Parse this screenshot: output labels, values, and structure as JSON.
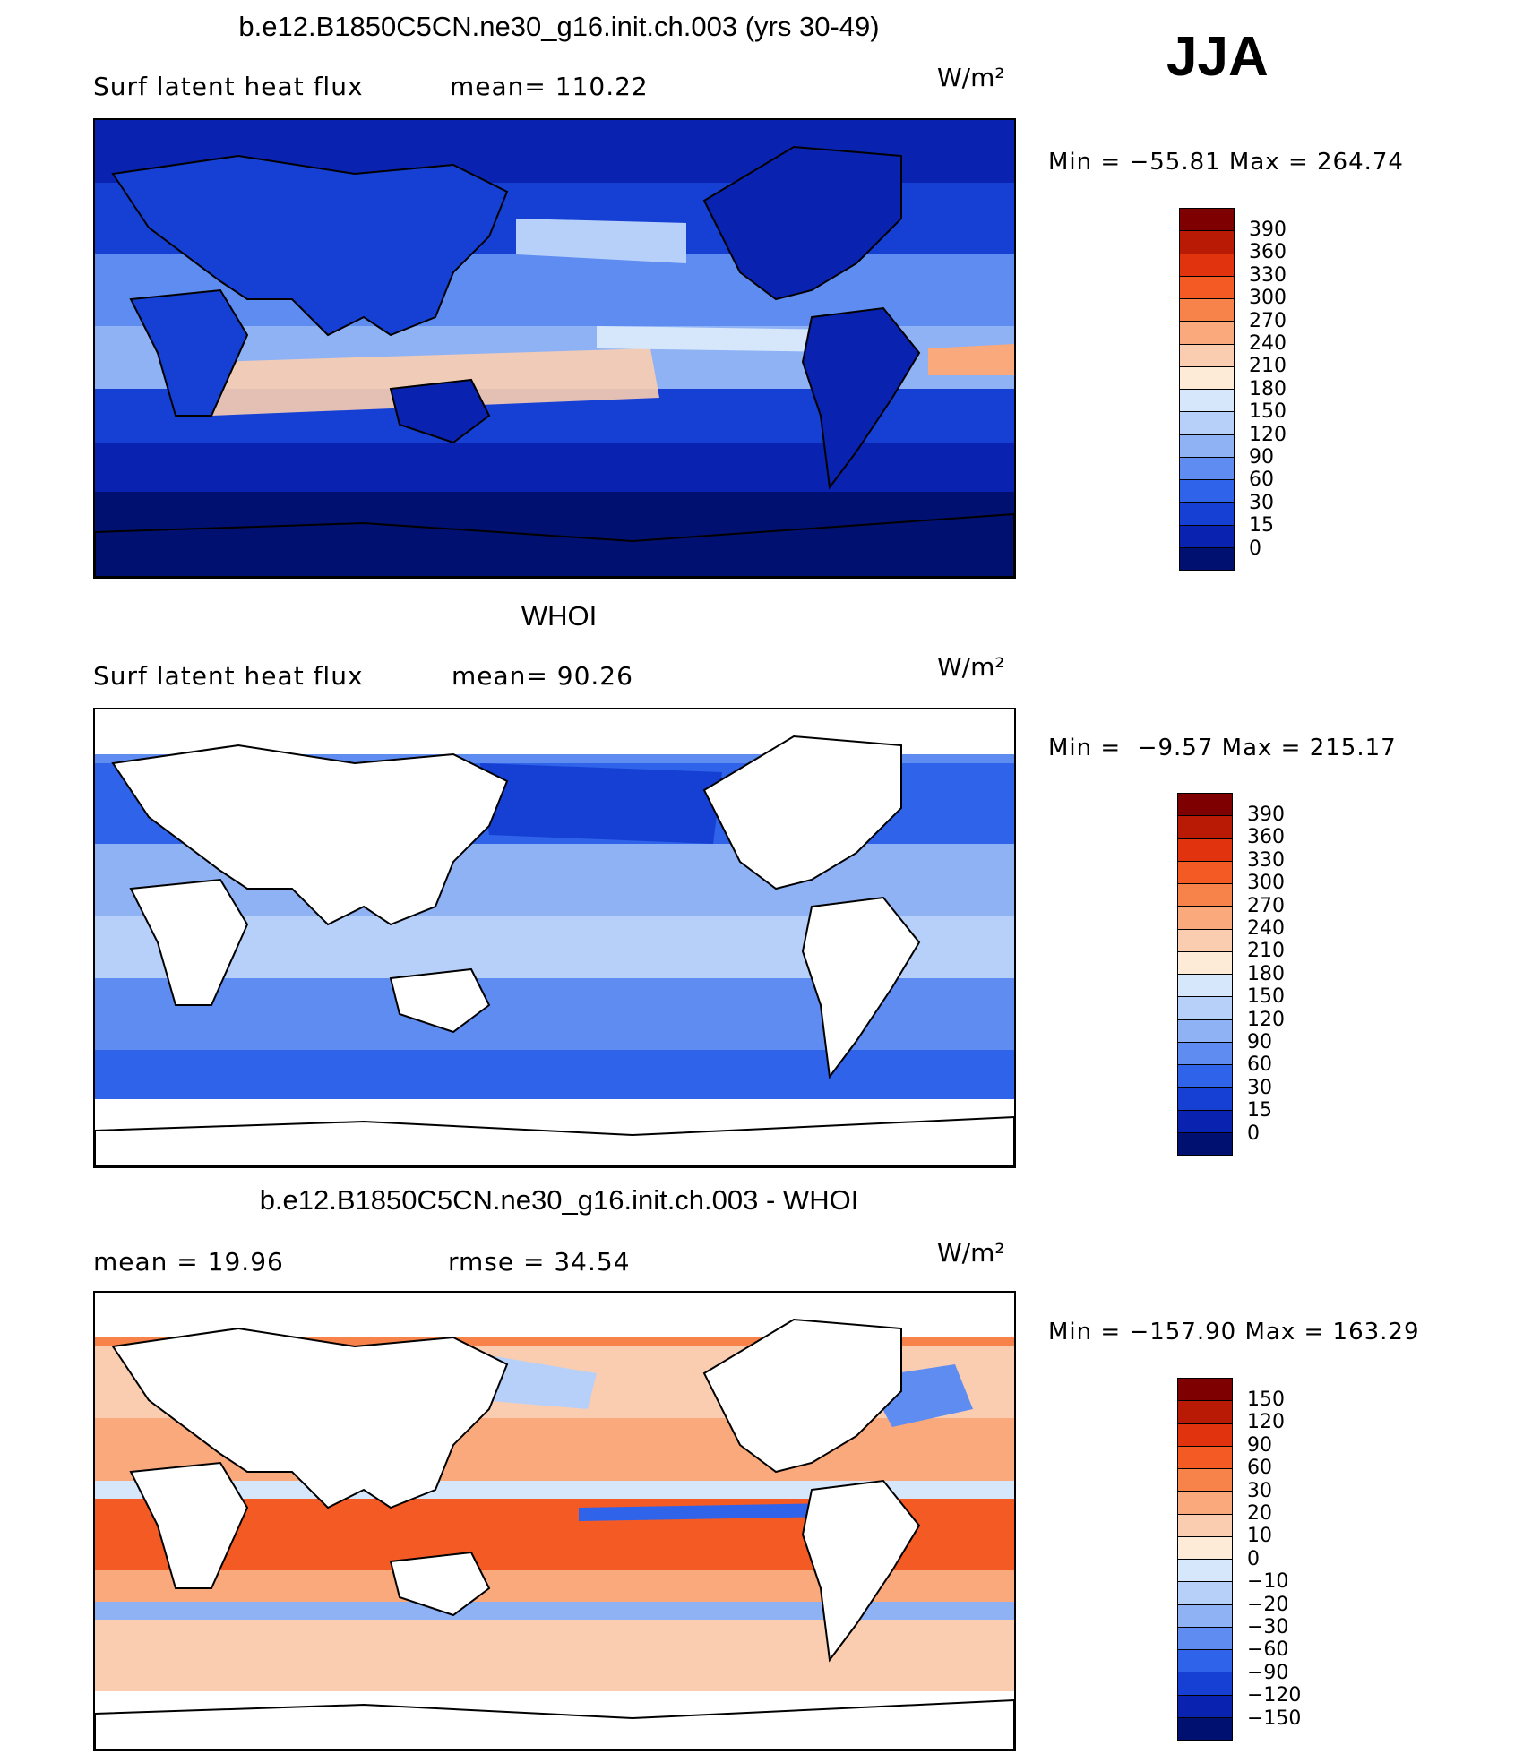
{
  "season": "JJA",
  "panels": [
    {
      "title": "b.e12.B1850C5CN.ne30_g16.init.ch.003 (yrs 30-49)",
      "variable": "Surf latent heat flux",
      "stat": "mean= 110.22",
      "units": "W/m²",
      "minmax": "Min = −55.81 Max = 264.74",
      "colorbar": {
        "labels": [
          "390",
          "360",
          "330",
          "300",
          "270",
          "240",
          "210",
          "180",
          "150",
          "120",
          "90",
          "60",
          "30",
          "15",
          "0"
        ],
        "colors": [
          "#7f0000",
          "#b81a05",
          "#e0330e",
          "#f45a23",
          "#f7834a",
          "#f9a97c",
          "#fbcdb0",
          "#fdebd7",
          "#d6e7fb",
          "#b7d0fa",
          "#8fb2f5",
          "#5f8cf0",
          "#2f63e9",
          "#1640d4",
          "#0a22b0",
          "#001070"
        ]
      }
    },
    {
      "title": "WHOI",
      "variable": "Surf latent heat flux",
      "stat": "mean=  90.26",
      "units": "W/m²",
      "minmax": "Min =  −9.57 Max = 215.17",
      "colorbar": {
        "labels": [
          "390",
          "360",
          "330",
          "300",
          "270",
          "240",
          "210",
          "180",
          "150",
          "120",
          "90",
          "60",
          "30",
          "15",
          "0"
        ],
        "colors": [
          "#7f0000",
          "#b81a05",
          "#e0330e",
          "#f45a23",
          "#f7834a",
          "#f9a97c",
          "#fbcdb0",
          "#fdebd7",
          "#d6e7fb",
          "#b7d0fa",
          "#8fb2f5",
          "#5f8cf0",
          "#2f63e9",
          "#1640d4",
          "#0a22b0",
          "#001070"
        ]
      }
    },
    {
      "title": "b.e12.B1850C5CN.ne30_g16.init.ch.003 - WHOI",
      "stat_mean": "mean =   19.96",
      "stat_rmse": "rmse =   34.54",
      "units": "W/m²",
      "minmax": "Min = −157.90 Max = 163.29",
      "colorbar": {
        "labels": [
          "150",
          "120",
          "90",
          "60",
          "30",
          "20",
          "10",
          "0",
          "−10",
          "−20",
          "−30",
          "−60",
          "−90",
          "−120",
          "−150"
        ],
        "colors": [
          "#7f0000",
          "#b81a05",
          "#e0330e",
          "#f45a23",
          "#f7834a",
          "#f9a97c",
          "#fbcdb0",
          "#fdebd7",
          "#d6e7fb",
          "#b7d0fa",
          "#8fb2f5",
          "#5f8cf0",
          "#2f63e9",
          "#1640d4",
          "#0a22b0",
          "#001070"
        ]
      }
    }
  ]
}
